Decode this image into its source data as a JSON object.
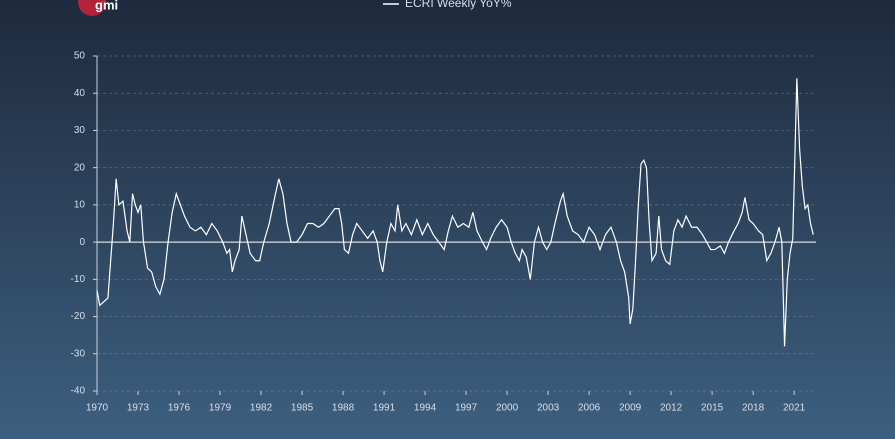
{
  "logo": "gmi",
  "chart_data": {
    "type": "line",
    "x": [
      1970.0,
      1970.2,
      1970.5,
      1970.8,
      1971.0,
      1971.2,
      1971.4,
      1971.6,
      1971.9,
      1972.2,
      1972.4,
      1972.6,
      1972.8,
      1973.0,
      1973.2,
      1973.4,
      1973.7,
      1974.0,
      1974.3,
      1974.6,
      1974.9,
      1975.2,
      1975.5,
      1975.8,
      1976.1,
      1976.4,
      1976.8,
      1977.2,
      1977.6,
      1978.0,
      1978.4,
      1978.8,
      1979.2,
      1979.5,
      1979.7,
      1979.9,
      1980.1,
      1980.4,
      1980.6,
      1980.9,
      1981.2,
      1981.6,
      1981.9,
      1982.2,
      1982.6,
      1983.0,
      1983.3,
      1983.6,
      1983.9,
      1984.2,
      1984.6,
      1985.0,
      1985.4,
      1985.8,
      1986.2,
      1986.6,
      1987.0,
      1987.4,
      1987.7,
      1987.9,
      1988.1,
      1988.4,
      1988.7,
      1989.0,
      1989.4,
      1989.8,
      1990.2,
      1990.5,
      1990.7,
      1990.9,
      1991.2,
      1991.5,
      1991.8,
      1992.0,
      1992.3,
      1992.6,
      1993.0,
      1993.4,
      1993.8,
      1994.2,
      1994.6,
      1995.0,
      1995.4,
      1995.7,
      1996.0,
      1996.4,
      1996.8,
      1997.2,
      1997.5,
      1997.8,
      1998.2,
      1998.5,
      1998.8,
      1999.2,
      1999.6,
      2000.0,
      2000.3,
      2000.6,
      2000.9,
      2001.1,
      2001.4,
      2001.7,
      2002.0,
      2002.3,
      2002.6,
      2002.9,
      2003.2,
      2003.5,
      2003.9,
      2004.1,
      2004.4,
      2004.8,
      2005.2,
      2005.6,
      2006.0,
      2006.4,
      2006.8,
      2007.2,
      2007.6,
      2008.0,
      2008.3,
      2008.6,
      2008.9,
      2009.0,
      2009.2,
      2009.4,
      2009.6,
      2009.8,
      2010.0,
      2010.2,
      2010.4,
      2010.6,
      2010.9,
      2011.1,
      2011.3,
      2011.6,
      2011.9,
      2012.2,
      2012.5,
      2012.8,
      2013.1,
      2013.5,
      2013.9,
      2014.3,
      2014.6,
      2014.9,
      2015.2,
      2015.6,
      2015.9,
      2016.2,
      2016.6,
      2016.9,
      2017.2,
      2017.4,
      2017.7,
      2018.0,
      2018.4,
      2018.7,
      2019.0,
      2019.3,
      2019.6,
      2019.9,
      2020.1,
      2020.3,
      2020.5,
      2020.7,
      2020.9,
      2021.0,
      2021.2,
      2021.4,
      2021.6,
      2021.8,
      2022.0,
      2022.2,
      2022.4
    ],
    "series": [
      {
        "name": "ECRI Weekly YoY%",
        "color": "#ffffff",
        "values": [
          -13,
          -17,
          -16,
          -15,
          -5,
          5,
          17,
          10,
          11,
          3,
          0,
          13,
          10,
          8,
          10,
          0,
          -7,
          -8,
          -12,
          -14,
          -10,
          0,
          8,
          13,
          10,
          7,
          4,
          3,
          4,
          2,
          5,
          3,
          0,
          -3,
          -2,
          -8,
          -5,
          -2,
          7,
          2,
          -3,
          -5,
          -5,
          0,
          5,
          12,
          17,
          13,
          5,
          0,
          0,
          2,
          5,
          5,
          4,
          5,
          7,
          9,
          9,
          5,
          -2,
          -3,
          2,
          5,
          3,
          1,
          3,
          0,
          -5,
          -8,
          0,
          5,
          3,
          10,
          3,
          5,
          2,
          6,
          2,
          5,
          2,
          0,
          -2,
          3,
          7,
          4,
          5,
          4,
          8,
          3,
          0,
          -2,
          1,
          4,
          6,
          4,
          0,
          -3,
          -5,
          -2,
          -4,
          -10,
          0,
          4,
          0,
          -2,
          0,
          5,
          11,
          13,
          7,
          3,
          2,
          0,
          4,
          2,
          -2,
          2,
          4,
          0,
          -5,
          -8,
          -15,
          -22,
          -18,
          -5,
          10,
          21,
          22,
          20,
          5,
          -5,
          -3,
          7,
          -2,
          -5,
          -6,
          3,
          6,
          4,
          7,
          4,
          4,
          2,
          0,
          -2,
          -2,
          -1,
          -3,
          0,
          3,
          5,
          8,
          12,
          6,
          5,
          3,
          2,
          -5,
          -3,
          0,
          4,
          0,
          -28,
          -10,
          -3,
          1,
          15,
          44,
          25,
          15,
          9,
          10,
          5,
          2
        ]
      }
    ],
    "xlim": [
      1970,
      2022.6
    ],
    "xticks": [
      1970,
      1973,
      1976,
      1979,
      1982,
      1985,
      1988,
      1991,
      1994,
      1997,
      2000,
      2003,
      2006,
      2009,
      2012,
      2015,
      2018,
      2021
    ],
    "ylim": [
      -40,
      50
    ],
    "yticks": [
      -40,
      -30,
      -20,
      -10,
      0,
      10,
      20,
      30,
      40,
      50
    ],
    "grid": true,
    "legend": "top"
  }
}
